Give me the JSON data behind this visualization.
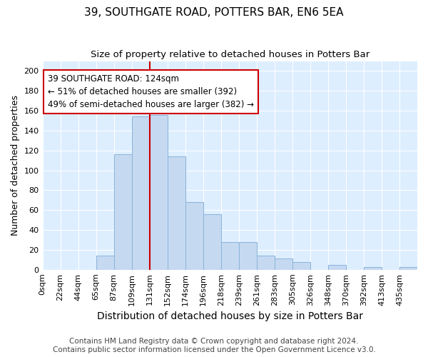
{
  "title": "39, SOUTHGATE ROAD, POTTERS BAR, EN6 5EA",
  "subtitle": "Size of property relative to detached houses in Potters Bar",
  "xlabel": "Distribution of detached houses by size in Potters Bar",
  "ylabel": "Number of detached properties",
  "footer_line1": "Contains HM Land Registry data © Crown copyright and database right 2024.",
  "footer_line2": "Contains public sector information licensed under the Open Government Licence v3.0.",
  "bin_labels": [
    "0sqm",
    "22sqm",
    "44sqm",
    "65sqm",
    "87sqm",
    "109sqm",
    "131sqm",
    "152sqm",
    "174sqm",
    "196sqm",
    "218sqm",
    "239sqm",
    "261sqm",
    "283sqm",
    "305sqm",
    "326sqm",
    "348sqm",
    "370sqm",
    "392sqm",
    "413sqm",
    "435sqm"
  ],
  "bar_heights": [
    0,
    0,
    0,
    14,
    116,
    154,
    156,
    114,
    68,
    56,
    28,
    28,
    14,
    11,
    8,
    0,
    5,
    0,
    3,
    0,
    3
  ],
  "bar_color": "#c5d9f1",
  "bar_edge_color": "#8ab4d9",
  "fig_background_color": "#ffffff",
  "ax_background_color": "#ddeeff",
  "grid_color": "#ffffff",
  "property_line_color": "#cc0000",
  "property_line_index": 6,
  "annotation_text": "39 SOUTHGATE ROAD: 124sqm\n← 51% of detached houses are smaller (392)\n49% of semi-detached houses are larger (382) →",
  "annotation_box_facecolor": "#ffffff",
  "annotation_box_edgecolor": "#cc0000",
  "ylim": [
    0,
    210
  ],
  "yticks": [
    0,
    20,
    40,
    60,
    80,
    100,
    120,
    140,
    160,
    180,
    200
  ],
  "title_fontsize": 11,
  "subtitle_fontsize": 9.5,
  "xlabel_fontsize": 10,
  "ylabel_fontsize": 9,
  "tick_fontsize": 8,
  "annotation_fontsize": 8.5,
  "footer_fontsize": 7.5
}
